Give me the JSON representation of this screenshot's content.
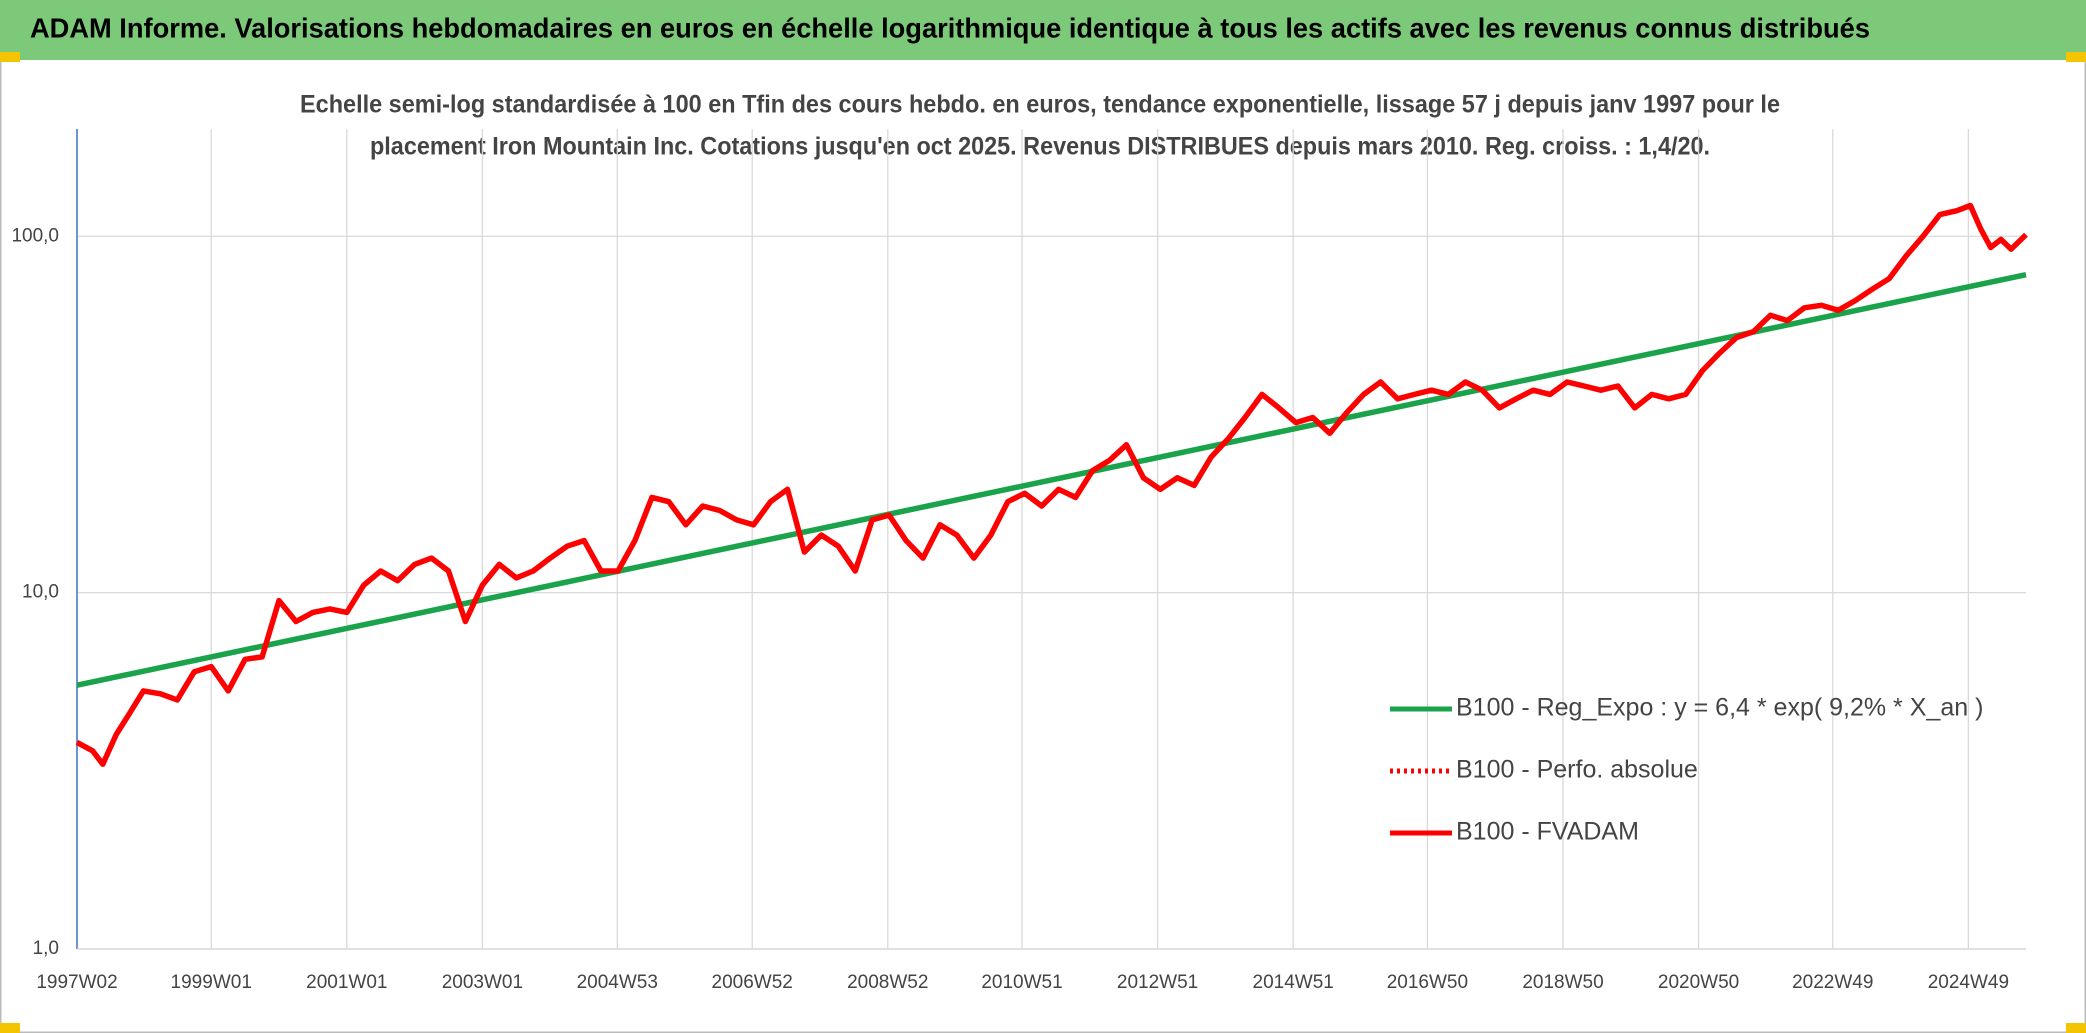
{
  "chart_data": {
    "type": "line",
    "title": "ADAM Informe. Valorisations hebdomadaires en euros en échelle logarithmique identique à tous les actifs avec les revenus connus distribués",
    "subtitle": [
      "Echelle semi-log standardisée à 100 en Tfin des cours hebdo. en euros, tendance exponentielle, lissage 57 j depuis janv 1997 pour le",
      "placement Iron Mountain Inc. Cotations jusqu'en oct 2025. Revenus DISTRIBUES depuis mars 2010. Reg. croiss. : 1,4/20."
    ],
    "log_scale": true,
    "grid": true,
    "legend": "right",
    "xlim": [
      1997.02,
      2025.77
    ],
    "ylim": [
      1,
      200
    ],
    "yticks": [
      {
        "value": 1,
        "label": "1,0"
      },
      {
        "value": 10,
        "label": "10,0"
      },
      {
        "value": 100,
        "label": "100,0"
      }
    ],
    "xticks": [
      {
        "value": 1997.02,
        "label": "1997W02"
      },
      {
        "value": 1999.0,
        "label": "1999W01"
      },
      {
        "value": 2001.0,
        "label": "2001W01"
      },
      {
        "value": 2003.0,
        "label": "2003W01"
      },
      {
        "value": 2004.99,
        "label": "2004W53"
      },
      {
        "value": 2006.98,
        "label": "2006W52"
      },
      {
        "value": 2008.98,
        "label": "2008W52"
      },
      {
        "value": 2010.96,
        "label": "2010W51"
      },
      {
        "value": 2012.96,
        "label": "2012W51"
      },
      {
        "value": 2014.96,
        "label": "2014W51"
      },
      {
        "value": 2016.94,
        "label": "2016W50"
      },
      {
        "value": 2018.94,
        "label": "2018W50"
      },
      {
        "value": 2020.94,
        "label": "2020W50"
      },
      {
        "value": 2022.92,
        "label": "2022W49"
      },
      {
        "value": 2024.92,
        "label": "2024W49"
      }
    ],
    "series": [
      {
        "name": "B100 - Reg_Expo : y = 6,4 * exp( 9,2% *  X_an )",
        "color": "#1aa34a",
        "dash": "solid",
        "x": [
          1997.02,
          2025.77
        ],
        "values": [
          5.5,
          78
        ]
      },
      {
        "name": "B100 - Perfo. absolue",
        "color": "#ff0000",
        "dash": "dotted",
        "x": [
          1997.02,
          1997.25,
          1997.4,
          1997.6,
          1997.8,
          1998.0,
          1998.25,
          1998.5,
          1998.75,
          1999.0,
          1999.25,
          1999.5,
          1999.75,
          2000.0,
          2000.25,
          2000.5,
          2000.75,
          2001.0,
          2001.25,
          2001.5,
          2001.75,
          2002.0,
          2002.25,
          2002.5,
          2002.75,
          2003.0,
          2003.25,
          2003.5,
          2003.75,
          2004.0,
          2004.25,
          2004.5,
          2004.75,
          2005.0,
          2005.25,
          2005.5,
          2005.75,
          2006.0,
          2006.25,
          2006.5,
          2006.75,
          2007.0,
          2007.25,
          2007.5,
          2007.75,
          2008.0,
          2008.25,
          2008.5,
          2008.75,
          2009.0,
          2009.25,
          2009.5,
          2009.75,
          2010.0,
          2010.25,
          2010.5,
          2010.75,
          2011.0,
          2011.25,
          2011.5,
          2011.75,
          2012.0,
          2012.25,
          2012.5,
          2012.75,
          2013.0,
          2013.25,
          2013.5,
          2013.75,
          2014.0,
          2014.25,
          2014.5,
          2014.75,
          2015.0,
          2015.25,
          2015.5,
          2015.75,
          2016.0,
          2016.25,
          2016.5,
          2016.75,
          2017.0,
          2017.25,
          2017.5,
          2017.75,
          2018.0,
          2018.25,
          2018.5,
          2018.75,
          2019.0,
          2019.25,
          2019.5,
          2019.75,
          2020.0,
          2020.25,
          2020.5,
          2020.75,
          2021.0,
          2021.25,
          2021.5,
          2021.75,
          2022.0,
          2022.25,
          2022.5,
          2022.75,
          2023.0,
          2023.25,
          2023.5,
          2023.75,
          2024.0,
          2024.25,
          2024.5,
          2024.75,
          2024.95,
          2025.1,
          2025.25,
          2025.4,
          2025.55,
          2025.77
        ],
        "values": [
          3.8,
          3.6,
          3.3,
          4.0,
          4.6,
          5.3,
          5.2,
          5.0,
          6.0,
          6.2,
          5.3,
          6.5,
          6.6,
          9.5,
          8.3,
          8.8,
          9.0,
          8.8,
          10.5,
          11.5,
          10.8,
          12.0,
          12.5,
          11.5,
          8.3,
          10.5,
          12.0,
          11.0,
          11.5,
          12.5,
          13.5,
          14.0,
          11.5,
          11.5,
          14.0,
          18.5,
          18.0,
          15.5,
          17.5,
          17.0,
          16.0,
          15.5,
          18.0,
          19.5,
          13.0,
          14.5,
          13.5,
          11.5,
          16.0,
          16.5,
          14.0,
          12.5,
          15.5,
          14.5,
          12.5,
          14.5,
          18.0,
          19.0,
          17.5,
          19.5,
          18.5,
          22.0,
          23.5,
          26.0,
          21.0,
          19.5,
          21.0,
          20.0,
          24.0,
          27.0,
          31.0,
          36.0,
          33.0,
          30.0,
          31.0,
          28.0,
          32.0,
          36.0,
          39.0,
          35.0,
          36.0,
          37.0,
          36.0,
          39.0,
          37.0,
          33.0,
          35.0,
          37.0,
          36.0,
          39.0,
          38.0,
          37.0,
          38.0,
          33.0,
          36.0,
          35.0,
          36.0,
          42.0,
          47.0,
          52.0,
          54.0,
          60.0,
          58.0,
          63.0,
          64.0,
          62.0,
          66.0,
          71.0,
          76.0,
          88.0,
          100.0,
          115.0,
          118.0,
          122.0,
          105.0,
          93.0,
          98.0,
          92.0,
          101.0
        ]
      },
      {
        "name": "B100 - FVADAM",
        "color": "#ff0000",
        "dash": "solid",
        "x": [
          1997.02,
          1997.25,
          1997.4,
          1997.6,
          1997.8,
          1998.0,
          1998.25,
          1998.5,
          1998.75,
          1999.0,
          1999.25,
          1999.5,
          1999.75,
          2000.0,
          2000.25,
          2000.5,
          2000.75,
          2001.0,
          2001.25,
          2001.5,
          2001.75,
          2002.0,
          2002.25,
          2002.5,
          2002.75,
          2003.0,
          2003.25,
          2003.5,
          2003.75,
          2004.0,
          2004.25,
          2004.5,
          2004.75,
          2005.0,
          2005.25,
          2005.5,
          2005.75,
          2006.0,
          2006.25,
          2006.5,
          2006.75,
          2007.0,
          2007.25,
          2007.5,
          2007.75,
          2008.0,
          2008.25,
          2008.5,
          2008.75,
          2009.0,
          2009.25,
          2009.5,
          2009.75,
          2010.0,
          2010.25,
          2010.5,
          2010.75,
          2011.0,
          2011.25,
          2011.5,
          2011.75,
          2012.0,
          2012.25,
          2012.5,
          2012.75,
          2013.0,
          2013.25,
          2013.5,
          2013.75,
          2014.0,
          2014.25,
          2014.5,
          2014.75,
          2015.0,
          2015.25,
          2015.5,
          2015.75,
          2016.0,
          2016.25,
          2016.5,
          2016.75,
          2017.0,
          2017.25,
          2017.5,
          2017.75,
          2018.0,
          2018.25,
          2018.5,
          2018.75,
          2019.0,
          2019.25,
          2019.5,
          2019.75,
          2020.0,
          2020.25,
          2020.5,
          2020.75,
          2021.0,
          2021.25,
          2021.5,
          2021.75,
          2022.0,
          2022.25,
          2022.5,
          2022.75,
          2023.0,
          2023.25,
          2023.5,
          2023.75,
          2024.0,
          2024.25,
          2024.5,
          2024.75,
          2024.95,
          2025.1,
          2025.25,
          2025.4,
          2025.55,
          2025.77
        ],
        "values": [
          3.8,
          3.6,
          3.3,
          4.0,
          4.6,
          5.3,
          5.2,
          5.0,
          6.0,
          6.2,
          5.3,
          6.5,
          6.6,
          9.5,
          8.3,
          8.8,
          9.0,
          8.8,
          10.5,
          11.5,
          10.8,
          12.0,
          12.5,
          11.5,
          8.3,
          10.5,
          12.0,
          11.0,
          11.5,
          12.5,
          13.5,
          14.0,
          11.5,
          11.5,
          14.0,
          18.5,
          18.0,
          15.5,
          17.5,
          17.0,
          16.0,
          15.5,
          18.0,
          19.5,
          13.0,
          14.5,
          13.5,
          11.5,
          16.0,
          16.5,
          14.0,
          12.5,
          15.5,
          14.5,
          12.5,
          14.5,
          18.0,
          19.0,
          17.5,
          19.5,
          18.5,
          22.0,
          23.5,
          26.0,
          21.0,
          19.5,
          21.0,
          20.0,
          24.0,
          27.0,
          31.0,
          36.0,
          33.0,
          30.0,
          31.0,
          28.0,
          32.0,
          36.0,
          39.0,
          35.0,
          36.0,
          37.0,
          36.0,
          39.0,
          37.0,
          33.0,
          35.0,
          37.0,
          36.0,
          39.0,
          38.0,
          37.0,
          38.0,
          33.0,
          36.0,
          35.0,
          36.0,
          42.0,
          47.0,
          52.0,
          54.0,
          60.0,
          58.0,
          63.0,
          64.0,
          62.0,
          66.0,
          71.0,
          76.0,
          88.0,
          100.0,
          115.0,
          118.0,
          122.0,
          105.0,
          93.0,
          98.0,
          92.0,
          101.0
        ]
      }
    ]
  }
}
